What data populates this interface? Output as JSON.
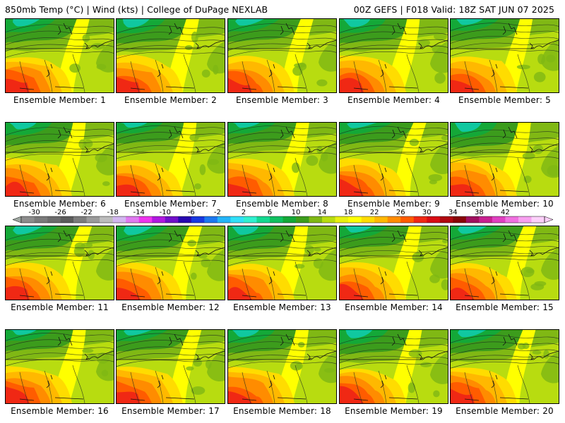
{
  "header": {
    "left": "850mb Temp (°C) | Wind (kts) | College of DuPage NEXLAB",
    "right": "00Z GEFS | F018 Valid: 18Z SAT JUN 07 2025"
  },
  "panels": [
    {
      "label": "Ensemble Member: 1"
    },
    {
      "label": "Ensemble Member: 2"
    },
    {
      "label": "Ensemble Member: 3"
    },
    {
      "label": "Ensemble Member: 4"
    },
    {
      "label": "Ensemble Member: 5"
    },
    {
      "label": "Ensemble Member: 6"
    },
    {
      "label": "Ensemble Member: 7"
    },
    {
      "label": "Ensemble Member: 8"
    },
    {
      "label": "Ensemble Member: 9"
    },
    {
      "label": "Ensemble Member: 10"
    },
    {
      "label": "Ensemble Member: 11"
    },
    {
      "label": "Ensemble Member: 12"
    },
    {
      "label": "Ensemble Member: 13"
    },
    {
      "label": "Ensemble Member: 14"
    },
    {
      "label": "Ensemble Member: 15"
    },
    {
      "label": "Ensemble Member: 16"
    },
    {
      "label": "Ensemble Member: 17"
    },
    {
      "label": "Ensemble Member: 18"
    },
    {
      "label": "Ensemble Member: 19"
    },
    {
      "label": "Ensemble Member: 20"
    }
  ],
  "colorbar": {
    "ticks": [
      "-30",
      "-26",
      "-22",
      "-18",
      "-14",
      "-10",
      "-6",
      "-2",
      "2",
      "6",
      "10",
      "14",
      "18",
      "22",
      "26",
      "30",
      "34",
      "38",
      "42"
    ],
    "colors": [
      "#8c8c8c",
      "#7a7a7a",
      "#6c6c6c",
      "#5c5c5c",
      "#7c7c7c",
      "#9a9a9a",
      "#bcbcbc",
      "#d2b6f0",
      "#e07af0",
      "#ee34ee",
      "#b018e0",
      "#7010c8",
      "#2808b0",
      "#1838e0",
      "#1c78f0",
      "#24b4f8",
      "#30e0f8",
      "#30f0d0",
      "#14d890",
      "#10c060",
      "#14a838",
      "#3c9c1c",
      "#80b814",
      "#b8dc10",
      "#e8f010",
      "#ffff00",
      "#ffdc00",
      "#ffb800",
      "#ff8c00",
      "#ff5c00",
      "#f02814",
      "#d80c14",
      "#b00810",
      "#880408",
      "#a01060",
      "#c82090",
      "#e040c0",
      "#f070e0",
      "#f8a0f0",
      "#fcd0fa"
    ],
    "land_outside": "#9ea6a0"
  },
  "palette": {
    "teal": "#10c8a0",
    "deep_green": "#14a838",
    "green": "#3c9c1c",
    "lime": "#80b814",
    "yellow_green": "#b8dc10",
    "yellow": "#ffff00",
    "gold": "#ffdc00",
    "orange": "#ffb800",
    "dark_orange": "#ff8c00",
    "red_orange": "#ff5c00",
    "red": "#f02814"
  }
}
